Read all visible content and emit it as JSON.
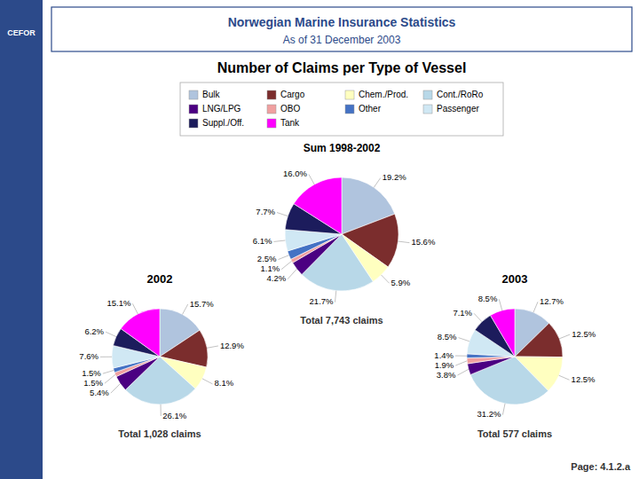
{
  "title": "Norwegian Marine Insurance Statistics",
  "subtitle": "As of 31 December 2003",
  "annotations": [
    "CEFOR",
    "Page: 4.1.2.a"
  ],
  "chart_data": {
    "type": "pie",
    "title": "Number of Claims per Type of Vessel",
    "categories": [
      "Bulk",
      "Cargo",
      "Chem./Prod.",
      "Cont./RoRo",
      "LNG/LPG",
      "OBO",
      "Other",
      "Passenger",
      "Suppl./Off.",
      "Tank"
    ],
    "colors": [
      "#b0c4de",
      "#7b2d2d",
      "#ffffc0",
      "#b8d8e8",
      "#4b0082",
      "#f0a0a0",
      "#4472c4",
      "#d0e8f4",
      "#1c1c5c",
      "#ff00ff"
    ],
    "series": [
      {
        "name": "Sum 1998-2002",
        "values": [
          19.2,
          15.6,
          5.9,
          21.7,
          4.2,
          1.1,
          2.5,
          6.1,
          7.7,
          16.0
        ],
        "value_labels": [
          "19.2%",
          "15.6%",
          "5.9%",
          "21.7%",
          "4.2%",
          "1.1%",
          "2.5%",
          "6.1%",
          "7.7%",
          "16.0%"
        ]
      },
      {
        "name": "2002",
        "values": [
          15.7,
          12.9,
          8.1,
          26.1,
          5.4,
          1.5,
          1.5,
          7.6,
          6.2,
          15.1
        ],
        "value_labels": [
          "15.7%",
          "12.9%",
          "8.1%",
          "26.1%",
          "5.4%",
          "1.5%",
          "1.5%",
          "7.6%",
          "6.2%",
          "15.1%"
        ]
      },
      {
        "name": "2003",
        "values": [
          12.7,
          12.5,
          12.5,
          31.2,
          3.8,
          1.9,
          1.4,
          8.5,
          7.1,
          8.5
        ],
        "value_labels": [
          "12.7%",
          "12.5%",
          "12.5%",
          "31.2%",
          "3.8%",
          "1.9%",
          "1.4%",
          "8.5%",
          "7.1%",
          "8.5%"
        ]
      }
    ],
    "annotations": [
      "Total 7,743 claims",
      "Total 1,028 claims",
      "Total 577 claims"
    ],
    "data_labels": true,
    "legend": "top"
  }
}
